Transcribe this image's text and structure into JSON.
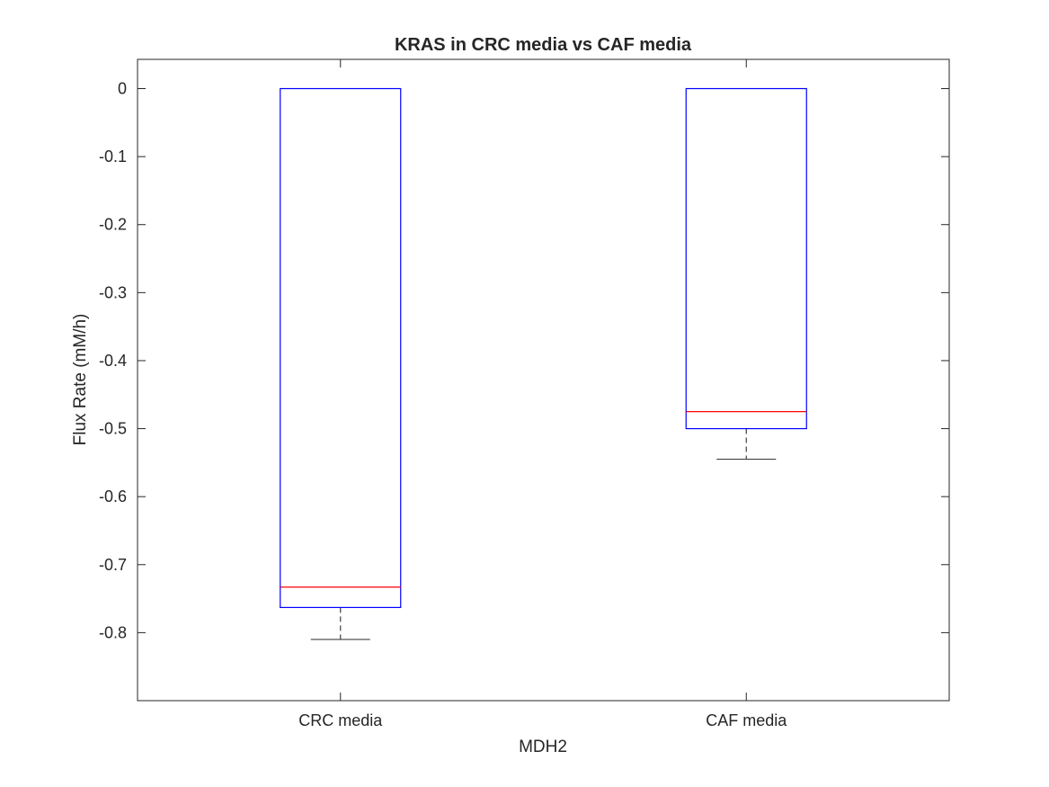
{
  "chart_data": {
    "type": "box",
    "title": "KRAS in CRC media vs CAF media",
    "xlabel": "MDH2",
    "ylabel": "Flux Rate (mM/h)",
    "categories": [
      "CRC media",
      "CAF media"
    ],
    "ylim": [
      -0.9,
      0.043
    ],
    "yticks": [
      0,
      -0.1,
      -0.2,
      -0.3,
      -0.4,
      -0.5,
      -0.6,
      -0.7,
      -0.8
    ],
    "ytick_labels": [
      "0",
      "-0.1",
      "-0.2",
      "-0.3",
      "-0.4",
      "-0.5",
      "-0.6",
      "-0.7",
      "-0.8"
    ],
    "boxes": [
      {
        "category": "CRC media",
        "q3": 0,
        "median": -0.733,
        "q1": -0.763,
        "whisker_high": 0,
        "whisker_low": -0.81
      },
      {
        "category": "CAF media",
        "q3": 0,
        "median": -0.475,
        "q1": -0.5,
        "whisker_high": 0,
        "whisker_low": -0.545
      }
    ],
    "grid": false,
    "colors": {
      "box": "#0000ff",
      "median": "#ff0000",
      "whisker": "#404040",
      "axes": "#262626"
    }
  }
}
